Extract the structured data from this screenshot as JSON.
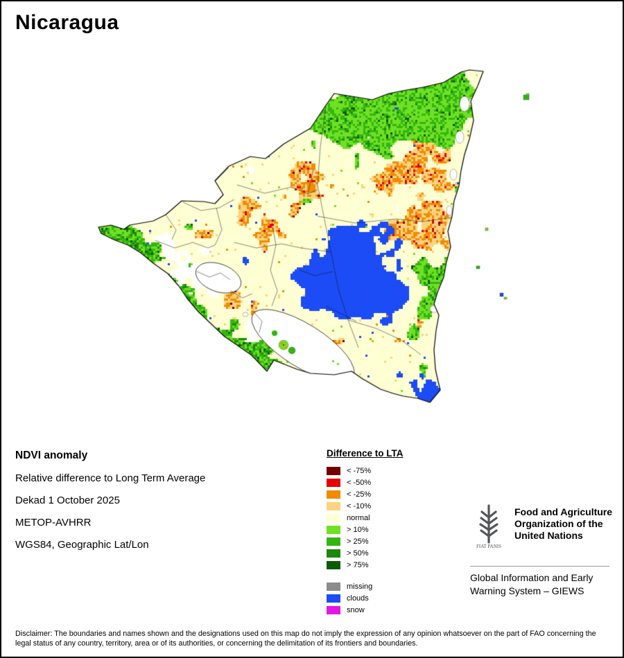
{
  "page": {
    "title": "Nicaragua"
  },
  "info": {
    "heading": "NDVI anomaly",
    "lines": [
      "Relative difference to Long Term Average",
      "Dekad 1 October 2025",
      "METOP-AVHRR",
      "WGS84, Geographic Lat/Lon"
    ]
  },
  "legend": {
    "title": "Difference to LTA",
    "items": [
      {
        "key": "lt-75",
        "label": "< -75%",
        "color": "#730000"
      },
      {
        "key": "lt-50",
        "label": "< -50%",
        "color": "#E60000"
      },
      {
        "key": "lt-25",
        "label": "< -25%",
        "color": "#F28B02"
      },
      {
        "key": "lt-10",
        "label": "< -10%",
        "color": "#FCD37F"
      },
      {
        "key": "normal",
        "label": "normal",
        "color": "#FFFFD4"
      },
      {
        "key": "gt10",
        "label": "> 10%",
        "color": "#70E024"
      },
      {
        "key": "gt25",
        "label": "> 25%",
        "color": "#33B60F"
      },
      {
        "key": "gt50",
        "label": "> 50%",
        "color": "#1D870B"
      },
      {
        "key": "gt75",
        "label": "> 75%",
        "color": "#0C5B06"
      }
    ],
    "extra_items": [
      {
        "key": "missing",
        "label": "missing",
        "color": "#8C8C8C"
      },
      {
        "key": "clouds",
        "label": "clouds",
        "color": "#1C4CF5"
      },
      {
        "key": "snow",
        "label": "snow",
        "color": "#E217E2"
      }
    ]
  },
  "footer": {
    "fao_name": [
      "Food and Agriculture",
      "Organization of the",
      "United Nations"
    ],
    "fao_motto": "FIAT PANIS",
    "giews": [
      "Global Information and Early",
      "Warning System – GIEWS"
    ]
  },
  "disclaimer": "Disclaimer: The boundaries and names shown and the designations used on this map do not imply the expression of any opinion whatsoever on the part of FAO concerning the legal status of any country, territory, area or of its authorities, or concerning the delimitation of its frontiers and boundaries."
}
